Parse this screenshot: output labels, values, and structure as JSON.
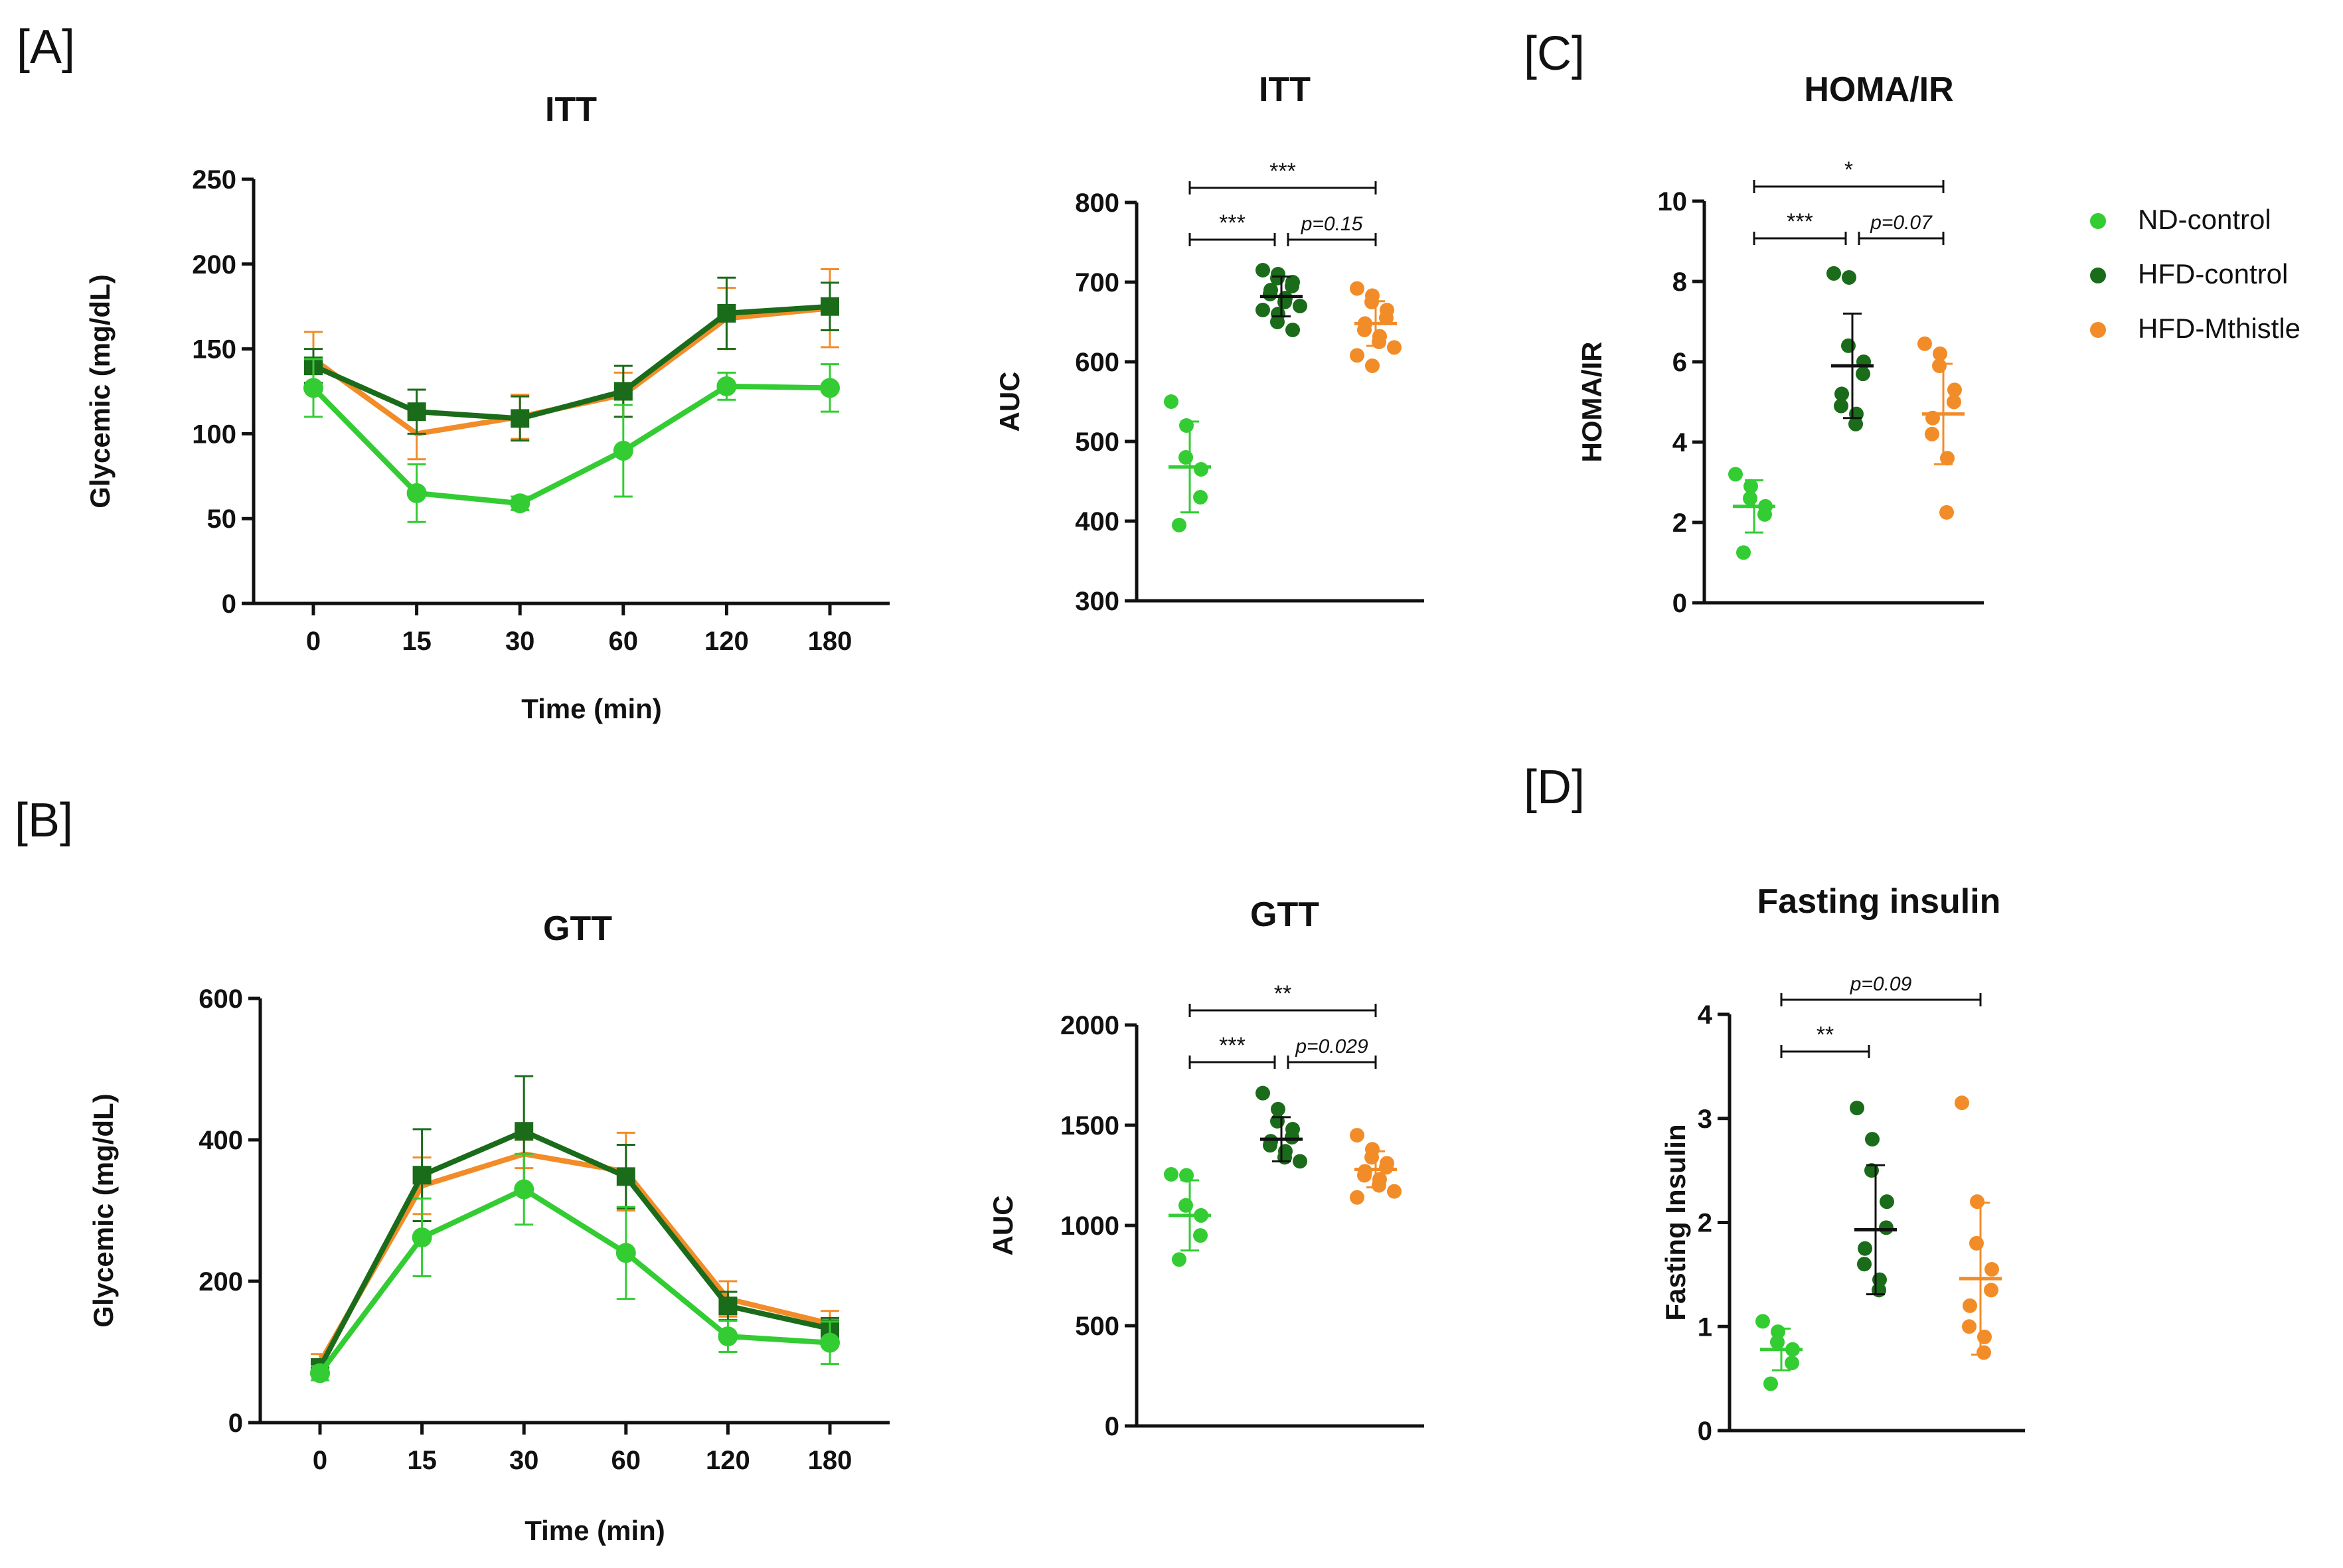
{
  "colors": {
    "nd": "#33cc33",
    "hfd": "#1a6b1a",
    "mth": "#f28c28"
  },
  "legend": [
    {
      "label": "ND-control",
      "color_key": "nd"
    },
    {
      "label": "HFD-control",
      "color_key": "hfd"
    },
    {
      "label": "HFD-Mthistle",
      "color_key": "mth"
    }
  ],
  "panel_labels": {
    "a": "[A]",
    "b": "[B]",
    "c": "[C]",
    "d": "[D]"
  },
  "chart_data": [
    {
      "id": "itt_line",
      "type": "line",
      "title": "ITT",
      "xlabel": "Time (min)",
      "ylabel": "Glycemic (mg/dL)",
      "categories": [
        "0",
        "15",
        "30",
        "60",
        "120",
        "180"
      ],
      "ylim": [
        0,
        250
      ],
      "yticks": [
        0,
        50,
        100,
        150,
        200,
        250
      ],
      "series": [
        {
          "name": "HFD-Mthistle",
          "color_key": "mth",
          "marker": "none",
          "values": [
            144,
            100,
            110,
            123,
            168,
            174
          ],
          "err": [
            16,
            15,
            13,
            13,
            18,
            23
          ]
        },
        {
          "name": "HFD-control",
          "color_key": "hfd",
          "marker": "square",
          "values": [
            140,
            113,
            109,
            125,
            171,
            175
          ],
          "err": [
            10,
            13,
            13,
            15,
            21,
            14
          ]
        },
        {
          "name": "ND-control",
          "color_key": "nd",
          "marker": "circle",
          "values": [
            127,
            65,
            59,
            90,
            128,
            127
          ],
          "err": [
            17,
            17,
            4,
            27,
            8,
            14
          ]
        }
      ]
    },
    {
      "id": "gtt_line",
      "type": "line",
      "title": "GTT",
      "xlabel": "Time (min)",
      "ylabel": "Glycemic (mg/dL)",
      "categories": [
        "0",
        "15",
        "30",
        "60",
        "120",
        "180"
      ],
      "ylim": [
        0,
        600
      ],
      "yticks": [
        0,
        200,
        400,
        600
      ],
      "series": [
        {
          "name": "HFD-Mthistle",
          "color_key": "mth",
          "marker": "none",
          "values": [
            85,
            335,
            380,
            355,
            175,
            140
          ],
          "err": [
            12,
            40,
            20,
            55,
            25,
            18
          ]
        },
        {
          "name": "HFD-control",
          "color_key": "hfd",
          "marker": "square",
          "values": [
            78,
            350,
            412,
            348,
            165,
            133
          ],
          "err": [
            10,
            65,
            78,
            45,
            20,
            15
          ]
        },
        {
          "name": "ND-control",
          "color_key": "nd",
          "marker": "circle",
          "values": [
            70,
            262,
            330,
            240,
            122,
            113
          ],
          "err": [
            10,
            55,
            50,
            65,
            22,
            30
          ]
        }
      ]
    },
    {
      "id": "itt_auc",
      "type": "scatter",
      "title": "ITT",
      "ylabel": "AUC",
      "ylim": [
        300,
        800
      ],
      "yticks": [
        300,
        400,
        500,
        600,
        700,
        800
      ],
      "groups": [
        {
          "name": "ND-control",
          "color_key": "nd",
          "mean": 468,
          "sd": 57,
          "points": [
            550,
            520,
            480,
            465,
            430,
            395
          ]
        },
        {
          "name": "HFD-control",
          "color_key": "hfd",
          "mean": 682,
          "sd": 25,
          "points": [
            715,
            710,
            705,
            700,
            695,
            690,
            685,
            680,
            675,
            670,
            665,
            660,
            650,
            640
          ]
        },
        {
          "name": "HFD-Mthistle",
          "color_key": "mth",
          "mean": 648,
          "sd": 28,
          "points": [
            692,
            683,
            675,
            665,
            655,
            648,
            640,
            632,
            625,
            618,
            608,
            595
          ]
        }
      ],
      "brackets": [
        {
          "from": 0,
          "to": 2,
          "level": 0,
          "label": "***"
        },
        {
          "from": 0,
          "to": 1,
          "level": 1,
          "label": "***"
        },
        {
          "from": 1,
          "to": 2,
          "level": 1,
          "label": "p=0.15"
        }
      ]
    },
    {
      "id": "gtt_auc",
      "type": "scatter",
      "title": "GTT",
      "ylabel": "AUC",
      "ylim": [
        0,
        2000
      ],
      "yticks": [
        0,
        500,
        1000,
        1500,
        2000
      ],
      "groups": [
        {
          "name": "ND-control",
          "color_key": "nd",
          "mean": 1050,
          "sd": 175,
          "points": [
            1255,
            1250,
            1100,
            1050,
            950,
            830
          ]
        },
        {
          "name": "HFD-control",
          "color_key": "hfd",
          "mean": 1430,
          "sd": 110,
          "points": [
            1660,
            1580,
            1520,
            1480,
            1440,
            1420,
            1400,
            1370,
            1340,
            1320
          ]
        },
        {
          "name": "HFD-Mthistle",
          "color_key": "mth",
          "mean": 1280,
          "sd": 90,
          "points": [
            1450,
            1380,
            1340,
            1310,
            1290,
            1270,
            1250,
            1230,
            1200,
            1170,
            1140
          ]
        }
      ],
      "brackets": [
        {
          "from": 0,
          "to": 2,
          "level": 0,
          "label": "**"
        },
        {
          "from": 0,
          "to": 1,
          "level": 1,
          "label": "***"
        },
        {
          "from": 1,
          "to": 2,
          "level": 1,
          "label": "p=0.029"
        }
      ]
    },
    {
      "id": "homa_ir",
      "type": "scatter",
      "title": "HOMA/IR",
      "ylabel": "HOMA/IR",
      "ylim": [
        0,
        10
      ],
      "yticks": [
        0,
        2,
        4,
        6,
        8,
        10
      ],
      "groups": [
        {
          "name": "ND-control",
          "color_key": "nd",
          "mean": 2.4,
          "sd": 0.65,
          "points": [
            3.2,
            2.9,
            2.6,
            2.4,
            2.2,
            1.25
          ]
        },
        {
          "name": "HFD-control",
          "color_key": "hfd",
          "mean": 5.9,
          "sd": 1.3,
          "points": [
            8.2,
            8.1,
            6.4,
            6.0,
            5.7,
            5.2,
            4.9,
            4.7,
            4.45
          ]
        },
        {
          "name": "HFD-Mthistle",
          "color_key": "mth",
          "mean": 4.7,
          "sd": 1.25,
          "points": [
            6.45,
            6.2,
            5.9,
            5.3,
            5.0,
            4.6,
            4.2,
            3.6,
            2.25
          ]
        }
      ],
      "brackets": [
        {
          "from": 0,
          "to": 2,
          "level": 0,
          "label": "*"
        },
        {
          "from": 0,
          "to": 1,
          "level": 1,
          "label": "***"
        },
        {
          "from": 1,
          "to": 2,
          "level": 1,
          "label": "p=0.07"
        }
      ]
    },
    {
      "id": "fasting_insulin",
      "type": "scatter",
      "title": "Fasting insulin",
      "ylabel": "Fasting Insulin",
      "ylim": [
        0,
        4
      ],
      "yticks": [
        0,
        1,
        2,
        3,
        4
      ],
      "groups": [
        {
          "name": "ND-control",
          "color_key": "nd",
          "mean": 0.78,
          "sd": 0.2,
          "points": [
            1.05,
            0.95,
            0.85,
            0.78,
            0.65,
            0.45
          ]
        },
        {
          "name": "HFD-control",
          "color_key": "hfd",
          "mean": 1.93,
          "sd": 0.62,
          "points": [
            3.1,
            2.8,
            2.5,
            2.2,
            1.95,
            1.75,
            1.6,
            1.45,
            1.35
          ]
        },
        {
          "name": "HFD-Mthistle",
          "color_key": "mth",
          "mean": 1.46,
          "sd": 0.73,
          "points": [
            3.15,
            2.2,
            1.8,
            1.55,
            1.35,
            1.2,
            1.0,
            0.9,
            0.75
          ]
        }
      ],
      "brackets": [
        {
          "from": 0,
          "to": 2,
          "level": 0,
          "label": "p=0.09"
        },
        {
          "from": 0,
          "to": 1,
          "level": 1,
          "label": "**"
        }
      ]
    }
  ]
}
